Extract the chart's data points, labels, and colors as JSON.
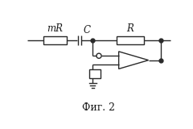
{
  "bg_color": "#ffffff",
  "line_color": "#2a2a2a",
  "label_color": "#1a1a1a",
  "title": "Фиг. 2",
  "title_fontsize": 9,
  "label_mR": "mR",
  "label_C": "C",
  "label_R": "R",
  "label_fontsize": 8.5,
  "fig_width": 2.4,
  "fig_height": 1.6,
  "dpi": 100
}
